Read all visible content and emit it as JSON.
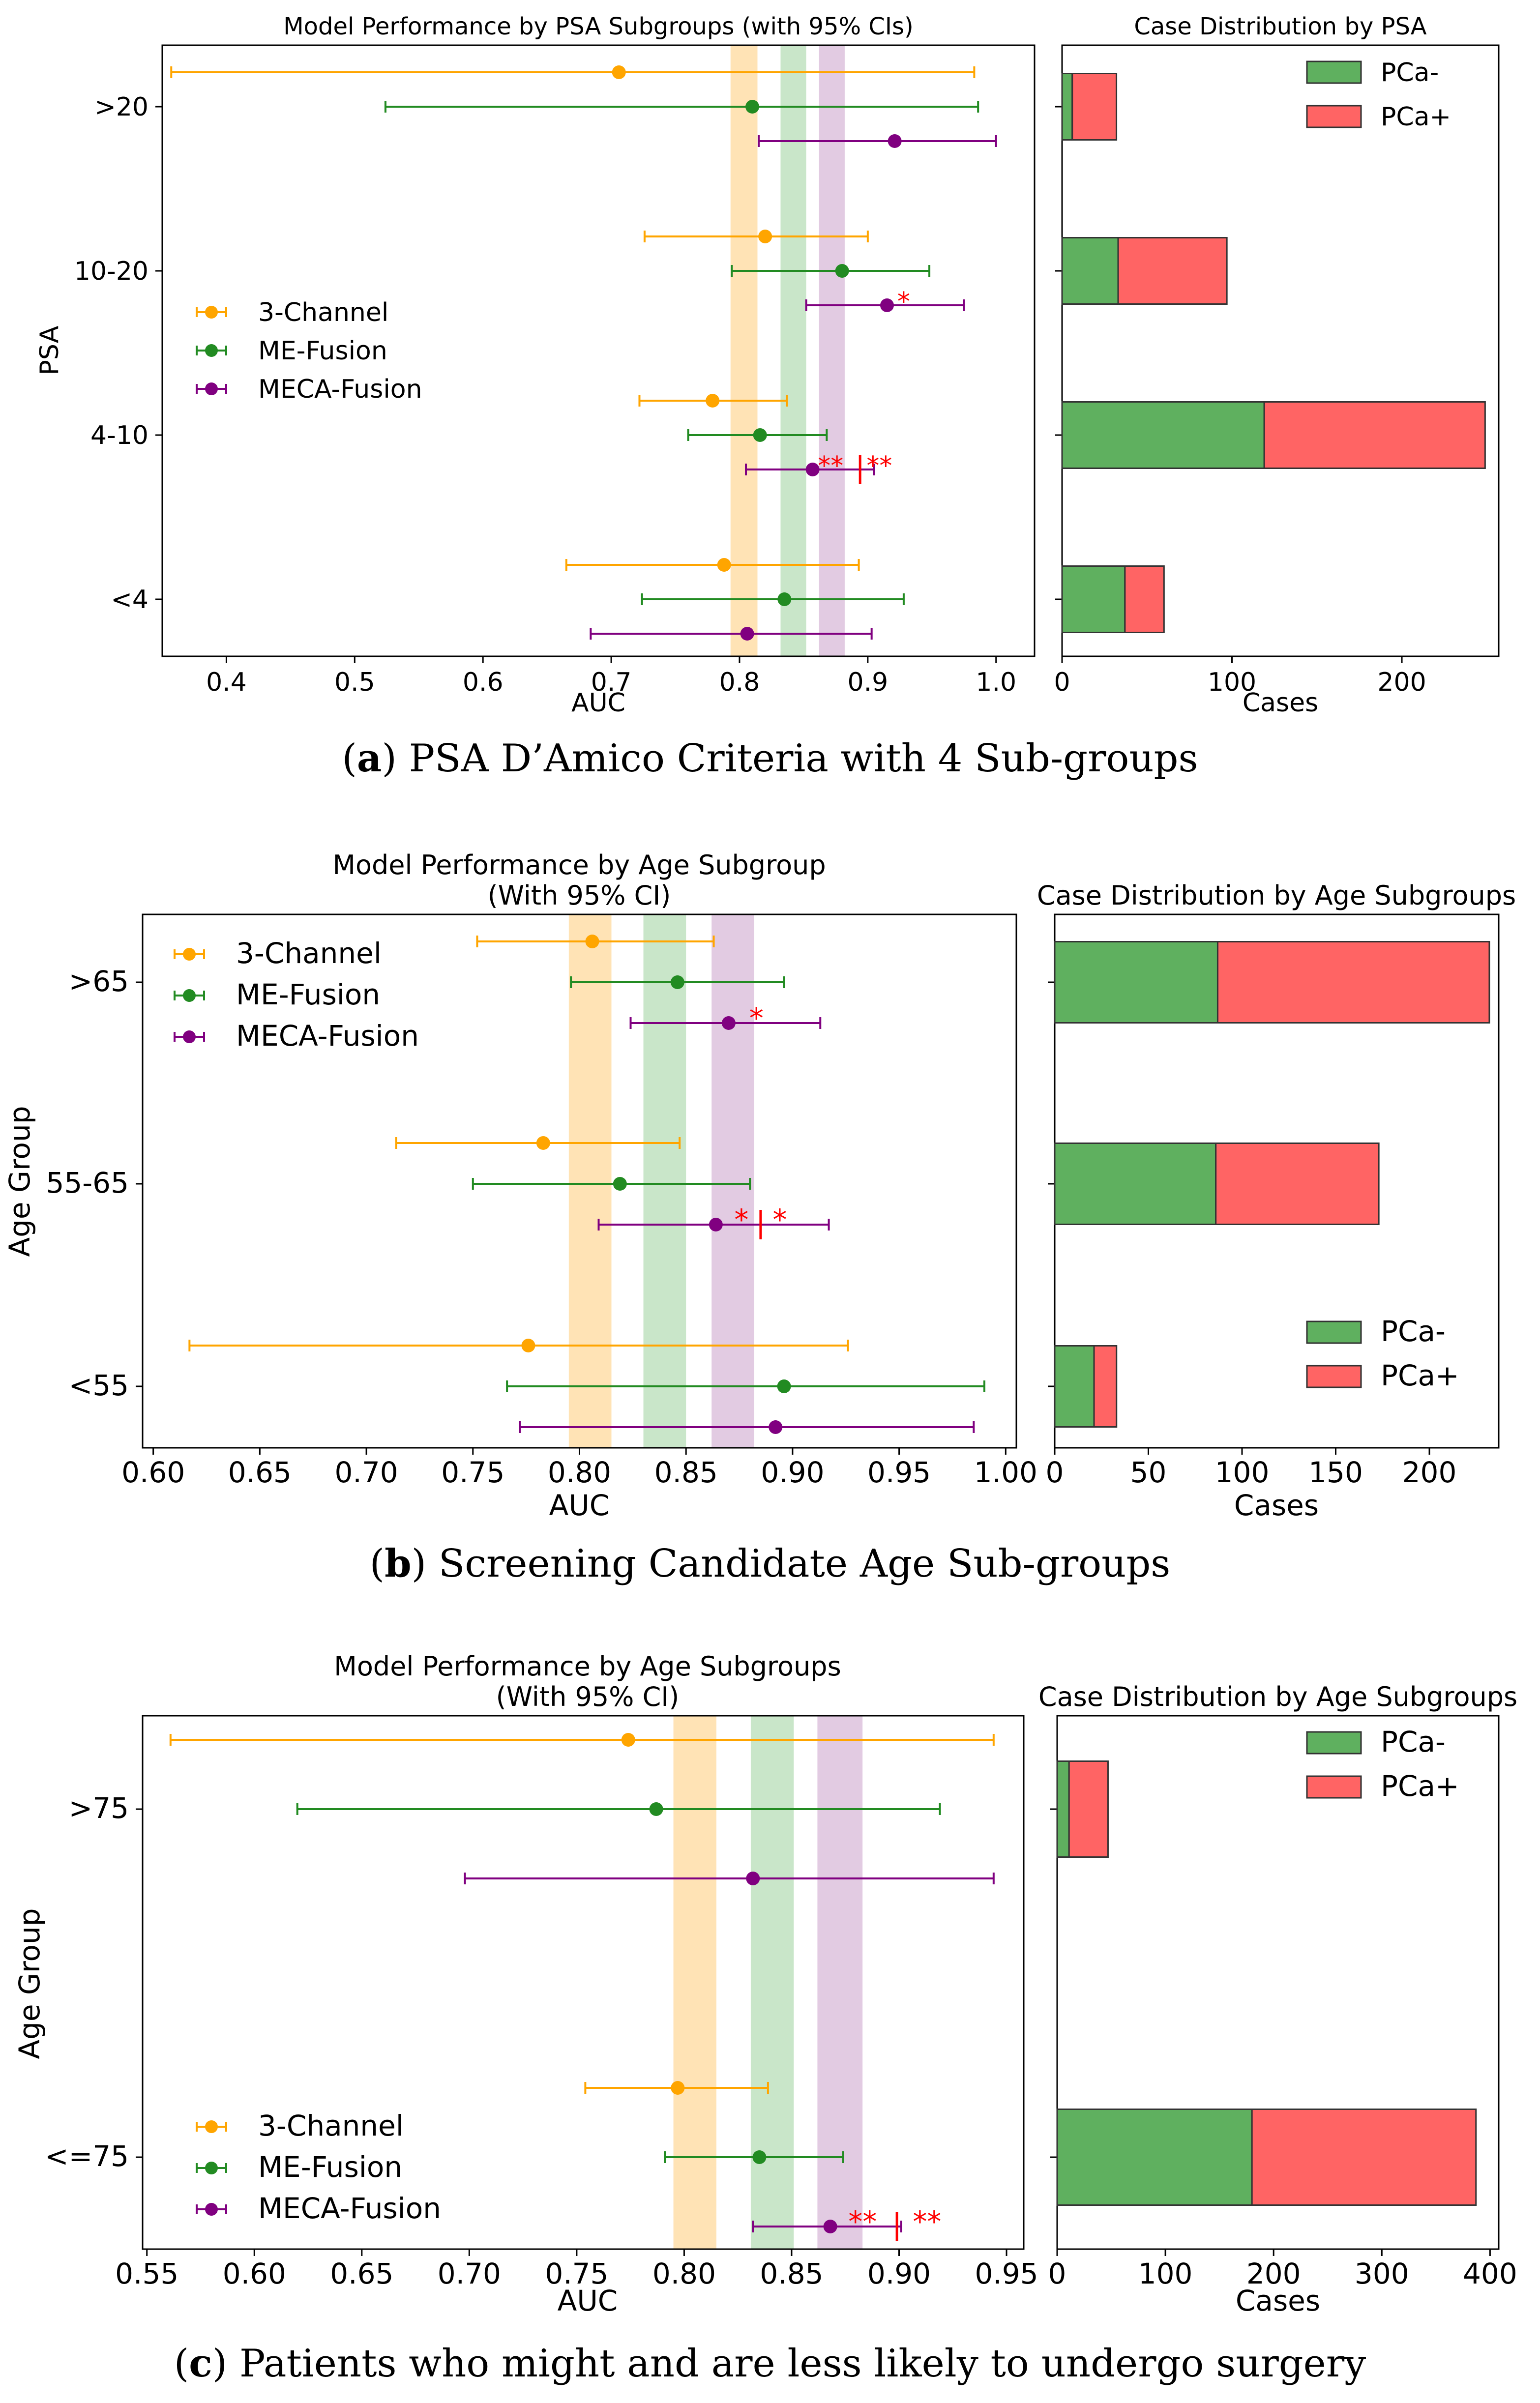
{
  "colors": {
    "three_channel": "#ffa500",
    "me_fusion": "#228b22",
    "meca_fusion": "#800080",
    "pca_neg": "#5fb05f",
    "pca_pos": "#ff6464",
    "significance": "#ff0000",
    "band_three": "#ffe3b5",
    "band_me": "#c9e6c9",
    "band_meca": "#e2cbe2"
  },
  "models": [
    "3-Channel",
    "ME-Fusion",
    "MECA-Fusion"
  ],
  "bar_legend": [
    "PCa-",
    "PCa+"
  ],
  "captions": [
    {
      "label": "a",
      "text": " PSA D’Amico Criteria with 4 Sub-groups"
    },
    {
      "label": "b",
      "text": " Screening Candidate Age Sub-groups"
    },
    {
      "label": "c",
      "text": " Patients who might and are less likely to undergo surgery"
    }
  ],
  "chart_data": [
    {
      "type": "scatter",
      "subtype": "forest_plot_with_error_bars",
      "title": "Model Performance by PSA Subgroups (with 95% CIs)",
      "xlabel": "AUC",
      "ylabel": "PSA",
      "xlim": [
        0.35,
        1.03
      ],
      "xticks": [
        "0.4",
        "0.5",
        "0.6",
        "0.7",
        "0.8",
        "0.9",
        "1.0"
      ],
      "categories": [
        ">20",
        "10-20",
        "4-10",
        "<4"
      ],
      "legend_position": "center-left",
      "bands": [
        {
          "model": "3-Channel",
          "range": [
            0.793,
            0.814
          ]
        },
        {
          "model": "ME-Fusion",
          "range": [
            0.832,
            0.852
          ]
        },
        {
          "model": "MECA-Fusion",
          "range": [
            0.862,
            0.882
          ]
        }
      ],
      "series": [
        {
          "name": "3-Channel",
          "auc": [
            0.706,
            0.82,
            0.779,
            0.788
          ],
          "ci_low": [
            0.357,
            0.726,
            0.722,
            0.665
          ],
          "ci_high": [
            0.983,
            0.9,
            0.837,
            0.893
          ]
        },
        {
          "name": "ME-Fusion",
          "auc": [
            0.81,
            0.88,
            0.816,
            0.835
          ],
          "ci_low": [
            0.524,
            0.794,
            0.76,
            0.724
          ],
          "ci_high": [
            0.986,
            0.948,
            0.868,
            0.928
          ]
        },
        {
          "name": "MECA-Fusion",
          "auc": [
            0.921,
            0.915,
            0.857,
            0.806
          ],
          "ci_low": [
            0.815,
            0.852,
            0.805,
            0.684
          ],
          "ci_high": [
            1.0,
            0.975,
            0.905,
            0.903
          ]
        }
      ],
      "annotations": [
        {
          "category": "10-20",
          "text": "*",
          "x": 0.928
        },
        {
          "category": "4-10",
          "text": "**",
          "x": 0.871
        },
        {
          "category": "4-10",
          "text": "**",
          "x": 0.909
        },
        {
          "category": "4-10",
          "text": "|",
          "x": 0.894
        }
      ]
    },
    {
      "type": "bar",
      "subtype": "stacked_horizontal",
      "title": "Case Distribution by PSA",
      "xlabel": "Cases",
      "xlim": [
        0,
        257
      ],
      "xticks": [
        "0",
        "100",
        "200"
      ],
      "categories": [
        ">20",
        "10-20",
        "4-10",
        "<4"
      ],
      "legend_position": "top-right",
      "series": [
        {
          "name": "PCa-",
          "values": [
            6,
            33,
            119,
            37
          ]
        },
        {
          "name": "PCa+",
          "values": [
            26,
            64,
            130,
            23
          ]
        }
      ]
    },
    {
      "type": "scatter",
      "subtype": "forest_plot_with_error_bars",
      "title": "Model Performance by Age Subgroup\n(With 95% CI)",
      "xlabel": "AUC",
      "ylabel": "Age Group",
      "xlim": [
        0.595,
        1.005
      ],
      "xticks": [
        "0.60",
        "0.65",
        "0.70",
        "0.75",
        "0.80",
        "0.85",
        "0.90",
        "0.95",
        "1.00"
      ],
      "categories": [
        ">65",
        "55-65",
        "<55"
      ],
      "legend_position": "top-left",
      "bands": [
        {
          "model": "3-Channel",
          "range": [
            0.795,
            0.815
          ]
        },
        {
          "model": "ME-Fusion",
          "range": [
            0.83,
            0.85
          ]
        },
        {
          "model": "MECA-Fusion",
          "range": [
            0.862,
            0.882
          ]
        }
      ],
      "series": [
        {
          "name": "3-Channel",
          "auc": [
            0.806,
            0.783,
            0.776
          ],
          "ci_low": [
            0.752,
            0.714,
            0.617
          ],
          "ci_high": [
            0.863,
            0.847,
            0.926
          ]
        },
        {
          "name": "ME-Fusion",
          "auc": [
            0.846,
            0.819,
            0.896
          ],
          "ci_low": [
            0.796,
            0.75,
            0.766
          ],
          "ci_high": [
            0.896,
            0.88,
            0.99
          ]
        },
        {
          "name": "MECA-Fusion",
          "auc": [
            0.87,
            0.864,
            0.892
          ],
          "ci_low": [
            0.824,
            0.809,
            0.772
          ],
          "ci_high": [
            0.913,
            0.917,
            0.985
          ]
        }
      ],
      "annotations": [
        {
          "category": ">65",
          "text": "*",
          "x": 0.883
        },
        {
          "category": "55-65",
          "text": "*",
          "x": 0.876
        },
        {
          "category": "55-65",
          "text": "*",
          "x": 0.894
        },
        {
          "category": "55-65",
          "text": "|",
          "x": 0.885
        }
      ]
    },
    {
      "type": "bar",
      "subtype": "stacked_horizontal",
      "title": "Case Distribution by Age Subgroups",
      "xlabel": "Cases",
      "xlim": [
        0,
        237
      ],
      "xticks": [
        "0",
        "50",
        "100",
        "150",
        "200"
      ],
      "categories": [
        ">65",
        "55-65",
        "<55"
      ],
      "legend_position": "bottom-right",
      "series": [
        {
          "name": "PCa-",
          "values": [
            87,
            86,
            21
          ]
        },
        {
          "name": "PCa+",
          "values": [
            145,
            87,
            12
          ]
        }
      ]
    },
    {
      "type": "scatter",
      "subtype": "forest_plot_with_error_bars",
      "title": "Model Performance by Age Subgroups\n(With 95% CI)",
      "xlabel": "AUC",
      "ylabel": "Age Group",
      "xlim": [
        0.548,
        0.958
      ],
      "xticks": [
        "0.55",
        "0.60",
        "0.65",
        "0.70",
        "0.75",
        "0.80",
        "0.85",
        "0.90",
        "0.95"
      ],
      "categories": [
        ">75",
        "<=75"
      ],
      "legend_position": "bottom-left",
      "bands": [
        {
          "model": "3-Channel",
          "range": [
            0.795,
            0.815
          ]
        },
        {
          "model": "ME-Fusion",
          "range": [
            0.831,
            0.851
          ]
        },
        {
          "model": "MECA-Fusion",
          "range": [
            0.862,
            0.883
          ]
        }
      ],
      "series": [
        {
          "name": "3-Channel",
          "auc": [
            0.774,
            0.797
          ],
          "ci_low": [
            0.561,
            0.754
          ],
          "ci_high": [
            0.944,
            0.839
          ]
        },
        {
          "name": "ME-Fusion",
          "auc": [
            0.787,
            0.835
          ],
          "ci_low": [
            0.62,
            0.791
          ],
          "ci_high": [
            0.919,
            0.874
          ]
        },
        {
          "name": "MECA-Fusion",
          "auc": [
            0.832,
            0.868
          ],
          "ci_low": [
            0.698,
            0.832
          ],
          "ci_high": [
            0.944,
            0.901
          ]
        }
      ],
      "annotations": [
        {
          "category": "<=75",
          "text": "**",
          "x": 0.883
        },
        {
          "category": "<=75",
          "text": "**",
          "x": 0.913
        },
        {
          "category": "<=75",
          "text": "|",
          "x": 0.899
        }
      ]
    },
    {
      "type": "bar",
      "subtype": "stacked_horizontal",
      "title": "Case Distribution by Age Subgroups",
      "xlabel": "Cases",
      "xlim": [
        0,
        408
      ],
      "xticks": [
        "0",
        "100",
        "200",
        "300",
        "400"
      ],
      "categories": [
        ">75",
        "<=75"
      ],
      "legend_position": "top-right",
      "series": [
        {
          "name": "PCa-",
          "values": [
            11,
            180
          ]
        },
        {
          "name": "PCa+",
          "values": [
            36,
            207
          ]
        }
      ]
    }
  ]
}
